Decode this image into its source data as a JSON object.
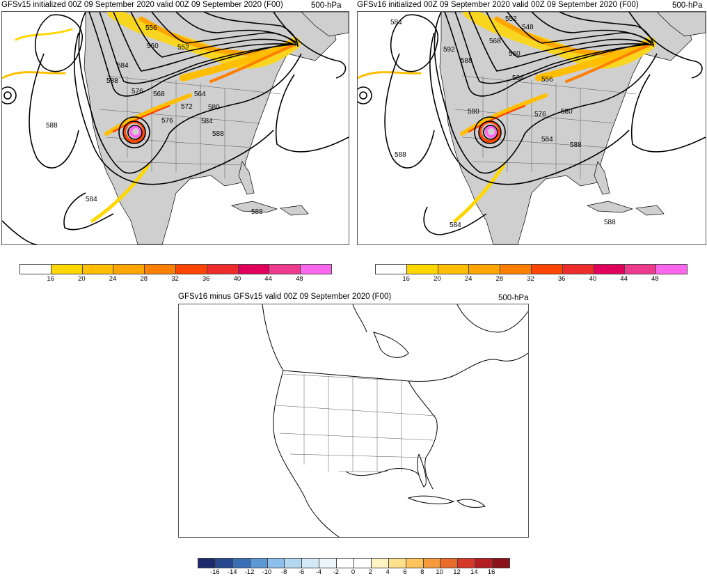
{
  "panels": [
    {
      "title": "GFSv15 initialized 00Z 09 September 2020 valid 00Z 09 September 2020 (F00)",
      "level": "500-hPa",
      "contour_labels": [
        "556",
        "560",
        "552",
        "584",
        "588",
        "576",
        "568",
        "564",
        "572",
        "580",
        "576",
        "584",
        "588",
        "588",
        "584",
        "588"
      ]
    },
    {
      "title": "GFSv16 initialized 00Z 09 September 2020 valid 00Z 09 September 2020 (F00)",
      "level": "500-hPa",
      "contour_labels": [
        "584",
        "552",
        "548",
        "592",
        "568",
        "560",
        "588",
        "564",
        "556",
        "580",
        "576",
        "580",
        "584",
        "588",
        "588",
        "584",
        "588"
      ]
    },
    {
      "title": "GFSv16 minus GFSv15 valid 00Z 09 September 2020 (F00)",
      "level": "500-hPa"
    }
  ],
  "colorbar_wind": {
    "ticks": [
      "16",
      "20",
      "24",
      "28",
      "32",
      "36",
      "40",
      "44",
      "48"
    ],
    "colors": [
      "#ffffff",
      "#ffd700",
      "#ffbf00",
      "#ffa500",
      "#ff7f00",
      "#ff4500",
      "#ee2c2c",
      "#e0005c",
      "#ee3a8c",
      "#ff66ee"
    ]
  },
  "colorbar_diff": {
    "ticks": [
      "-16",
      "-14",
      "-12",
      "-10",
      "-8",
      "-6",
      "-4",
      "-2",
      "0",
      "2",
      "4",
      "6",
      "8",
      "10",
      "12",
      "14",
      "16"
    ],
    "colors": [
      "#1b2a6b",
      "#25488f",
      "#3a6fb5",
      "#5b98d6",
      "#8cc0ea",
      "#b3d9f2",
      "#d3eaf7",
      "#ecf6fb",
      "#ffffff",
      "#ffffff",
      "#fff3c4",
      "#ffe08a",
      "#ffc45a",
      "#f79a3c",
      "#ea6a2c",
      "#d6392a",
      "#b41e23",
      "#8b1218"
    ]
  }
}
